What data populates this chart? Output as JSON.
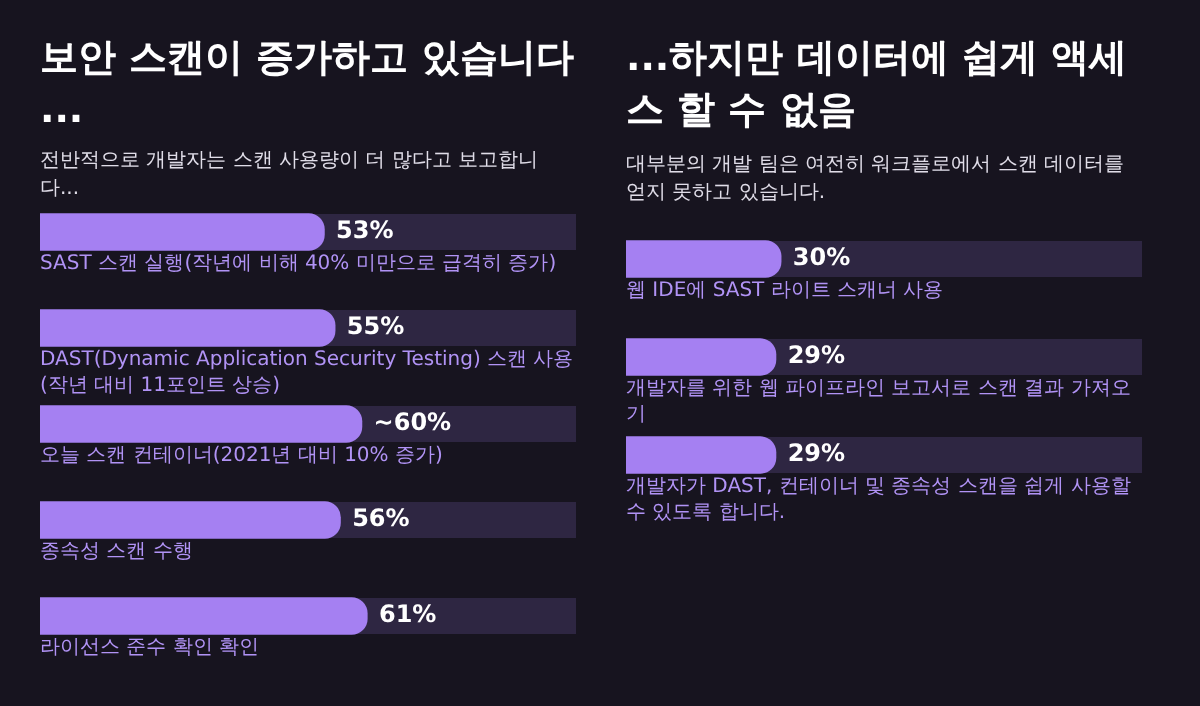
{
  "chart_data": [
    {
      "type": "bar",
      "orientation": "horizontal",
      "title": "보안 스캔이 증가하고 있습니다 ...",
      "subtitle": "전반적으로 개발자는 스캔 사용량이 더 많다고 보고합니다...",
      "categories": [
        "SAST 스캔 실행(작년에 비해 40% 미만으로 급격히 증가)",
        "DAST(Dynamic Application Security Testing) 스캔 사용(작년 대비 11포인트 상승)",
        "오늘 스캔 컨테이너(2021년 대비 10% 증가)",
        "종속성 스캔 수행",
        "라이선스 준수 확인 확인"
      ],
      "values": [
        53,
        55,
        60,
        56,
        61
      ],
      "value_labels": [
        "53%",
        "55%",
        "~60%",
        "56%",
        "61%"
      ],
      "color": "#a580f2",
      "xlim": [
        0,
        100
      ],
      "tick_labels": false
    },
    {
      "type": "bar",
      "orientation": "horizontal",
      "title": "...하지만 데이터에 쉽게 액세스 할 수 없음",
      "subtitle": "대부분의 개발 팀은 여전히 워크플로에서 스캔 데이터를 얻지 못하고 있습니다.",
      "categories": [
        "웹 IDE에 SAST 라이트 스캐너 사용",
        "개발자를 위한 웹 파이프라인 보고서로 스캔 결과 가져오기",
        "개발자가 DAST, 컨테이너 및 종속성 스캔을 쉽게 사용할 수 있도록 합니다."
      ],
      "values": [
        30,
        29,
        29
      ],
      "value_labels": [
        "30%",
        "29%",
        "29%"
      ],
      "color": "#a580f2",
      "xlim": [
        0,
        100
      ],
      "tick_labels": false
    }
  ]
}
